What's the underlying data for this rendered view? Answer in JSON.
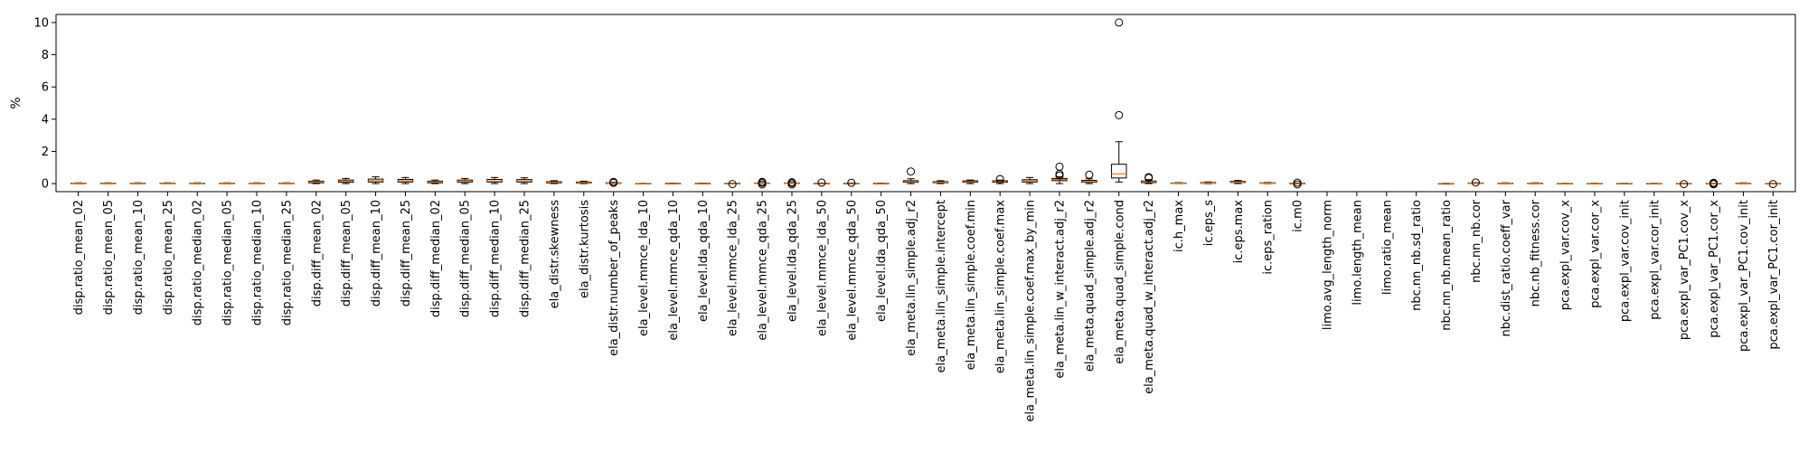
{
  "chart_data": {
    "type": "box",
    "title": "",
    "xlabel": "",
    "ylabel": "%",
    "ylim": [
      -0.5,
      10.5
    ],
    "yticks": [
      0,
      2,
      4,
      6,
      8,
      10
    ],
    "grid": false,
    "legend": "none",
    "colors": {
      "box": "#000000",
      "median": "#ff7f0e",
      "flier": "#000000"
    },
    "categories": [
      "disp.ratio_mean_02",
      "disp.ratio_mean_05",
      "disp.ratio_mean_10",
      "disp.ratio_mean_25",
      "disp.ratio_median_02",
      "disp.ratio_median_05",
      "disp.ratio_median_10",
      "disp.ratio_median_25",
      "disp.diff_mean_02",
      "disp.diff_mean_05",
      "disp.diff_mean_10",
      "disp.diff_mean_25",
      "disp.diff_median_02",
      "disp.diff_median_05",
      "disp.diff_median_10",
      "disp.diff_median_25",
      "ela_distr.skewness",
      "ela_distr.kurtosis",
      "ela_distr.number_of_peaks",
      "ela_level.mmce_lda_10",
      "ela_level.mmce_qda_10",
      "ela_level.lda_qda_10",
      "ela_level.mmce_lda_25",
      "ela_level.mmce_qda_25",
      "ela_level.lda_qda_25",
      "ela_level.mmce_lda_50",
      "ela_level.mmce_qda_50",
      "ela_level.lda_qda_50",
      "ela_meta.lin_simple.adj_r2",
      "ela_meta.lin_simple.intercept",
      "ela_meta.lin_simple.coef.min",
      "ela_meta.lin_simple.coef.max",
      "ela_meta.lin_simple.coef.max_by_min",
      "ela_meta.lin_w_interact.adj_r2",
      "ela_meta.quad_simple.adj_r2",
      "ela_meta.quad_simple.cond",
      "ela_meta.quad_w_interact.adj_r2",
      "ic.h_max",
      "ic.eps_s",
      "ic.eps.max",
      "ic.eps_ration",
      "ic.m0",
      "limo.avg_length_norm",
      "limo.length_mean",
      "limo.ratio_mean",
      "nbc.nn_nb.sd_ratio",
      "nbc.nn_nb.mean_ratio",
      "nbc.nn_nb.cor",
      "nbc.dist_ratio.coeff_var",
      "nbc.nb_fitness.cor",
      "pca.expl_var.cov_x",
      "pca.expl_var.cor_x",
      "pca.expl_var.cov_init",
      "pca.expl_var.cor_init",
      "pca.expl_var_PC1.cov_x",
      "pca.expl_var_PC1.cor_x",
      "pca.expl_var_PC1.cov_init",
      "pca.expl_var_PC1.cor_init"
    ],
    "boxes": [
      {
        "whislo": 0.0,
        "q1": 0.01,
        "med": 0.02,
        "q3": 0.03,
        "whishi": 0.05,
        "fliers": []
      },
      {
        "whislo": 0.0,
        "q1": 0.01,
        "med": 0.02,
        "q3": 0.03,
        "whishi": 0.05,
        "fliers": []
      },
      {
        "whislo": 0.0,
        "q1": 0.01,
        "med": 0.02,
        "q3": 0.03,
        "whishi": 0.05,
        "fliers": []
      },
      {
        "whislo": 0.0,
        "q1": 0.01,
        "med": 0.02,
        "q3": 0.03,
        "whishi": 0.05,
        "fliers": []
      },
      {
        "whislo": 0.0,
        "q1": 0.01,
        "med": 0.02,
        "q3": 0.03,
        "whishi": 0.05,
        "fliers": []
      },
      {
        "whislo": 0.0,
        "q1": 0.01,
        "med": 0.02,
        "q3": 0.03,
        "whishi": 0.05,
        "fliers": []
      },
      {
        "whislo": 0.0,
        "q1": 0.01,
        "med": 0.02,
        "q3": 0.03,
        "whishi": 0.05,
        "fliers": []
      },
      {
        "whislo": 0.0,
        "q1": 0.01,
        "med": 0.02,
        "q3": 0.03,
        "whishi": 0.05,
        "fliers": []
      },
      {
        "whislo": 0.0,
        "q1": 0.05,
        "med": 0.1,
        "q3": 0.15,
        "whishi": 0.22,
        "fliers": []
      },
      {
        "whislo": 0.0,
        "q1": 0.08,
        "med": 0.15,
        "q3": 0.22,
        "whishi": 0.32,
        "fliers": []
      },
      {
        "whislo": 0.0,
        "q1": 0.1,
        "med": 0.18,
        "q3": 0.28,
        "whishi": 0.42,
        "fliers": []
      },
      {
        "whislo": 0.0,
        "q1": 0.1,
        "med": 0.18,
        "q3": 0.26,
        "whishi": 0.38,
        "fliers": []
      },
      {
        "whislo": 0.0,
        "q1": 0.05,
        "med": 0.1,
        "q3": 0.15,
        "whishi": 0.22,
        "fliers": []
      },
      {
        "whislo": 0.0,
        "q1": 0.08,
        "med": 0.14,
        "q3": 0.22,
        "whishi": 0.32,
        "fliers": []
      },
      {
        "whislo": 0.0,
        "q1": 0.1,
        "med": 0.16,
        "q3": 0.26,
        "whishi": 0.38,
        "fliers": []
      },
      {
        "whislo": 0.0,
        "q1": 0.1,
        "med": 0.16,
        "q3": 0.25,
        "whishi": 0.36,
        "fliers": []
      },
      {
        "whislo": 0.0,
        "q1": 0.04,
        "med": 0.08,
        "q3": 0.12,
        "whishi": 0.18,
        "fliers": []
      },
      {
        "whislo": 0.0,
        "q1": 0.03,
        "med": 0.06,
        "q3": 0.1,
        "whishi": 0.15,
        "fliers": []
      },
      {
        "whislo": 0.0,
        "q1": 0.01,
        "med": 0.03,
        "q3": 0.05,
        "whishi": 0.08,
        "fliers": [
          0.1,
          0.05
        ]
      },
      {
        "whislo": -0.02,
        "q1": -0.01,
        "med": 0.0,
        "q3": 0.01,
        "whishi": 0.02,
        "fliers": []
      },
      {
        "whislo": 0.0,
        "q1": 0.005,
        "med": 0.01,
        "q3": 0.02,
        "whishi": 0.03,
        "fliers": []
      },
      {
        "whislo": 0.0,
        "q1": 0.005,
        "med": 0.01,
        "q3": 0.02,
        "whishi": 0.03,
        "fliers": []
      },
      {
        "whislo": 0.0,
        "q1": 0.005,
        "med": 0.01,
        "q3": 0.02,
        "whishi": 0.03,
        "fliers": [
          -0.03
        ]
      },
      {
        "whislo": 0.0,
        "q1": 0.01,
        "med": 0.02,
        "q3": 0.04,
        "whishi": 0.06,
        "fliers": [
          0.1,
          -0.05,
          0.05
        ]
      },
      {
        "whislo": 0.0,
        "q1": 0.01,
        "med": 0.02,
        "q3": 0.04,
        "whishi": 0.06,
        "fliers": [
          0.08,
          -0.05,
          0.04
        ]
      },
      {
        "whislo": 0.0,
        "q1": 0.005,
        "med": 0.01,
        "q3": 0.02,
        "whishi": 0.04,
        "fliers": [
          0.06
        ]
      },
      {
        "whislo": 0.0,
        "q1": 0.005,
        "med": 0.01,
        "q3": 0.02,
        "whishi": 0.04,
        "fliers": [
          0.05
        ]
      },
      {
        "whislo": 0.0,
        "q1": 0.005,
        "med": 0.01,
        "q3": 0.02,
        "whishi": 0.03,
        "fliers": []
      },
      {
        "whislo": 0.0,
        "q1": 0.08,
        "med": 0.12,
        "q3": 0.18,
        "whishi": 0.3,
        "fliers": [
          0.75
        ]
      },
      {
        "whislo": 0.0,
        "q1": 0.05,
        "med": 0.08,
        "q3": 0.12,
        "whishi": 0.18,
        "fliers": []
      },
      {
        "whislo": 0.0,
        "q1": 0.08,
        "med": 0.12,
        "q3": 0.17,
        "whishi": 0.22,
        "fliers": []
      },
      {
        "whislo": 0.0,
        "q1": 0.08,
        "med": 0.12,
        "q3": 0.17,
        "whishi": 0.22,
        "fliers": [
          0.28
        ]
      },
      {
        "whislo": 0.0,
        "q1": 0.1,
        "med": 0.16,
        "q3": 0.24,
        "whishi": 0.38,
        "fliers": []
      },
      {
        "whislo": 0.0,
        "q1": 0.18,
        "med": 0.25,
        "q3": 0.32,
        "whishi": 0.42,
        "fliers": [
          1.05,
          0.6,
          0.5
        ]
      },
      {
        "whislo": 0.0,
        "q1": 0.08,
        "med": 0.13,
        "q3": 0.2,
        "whishi": 0.3,
        "fliers": [
          0.55
        ]
      },
      {
        "whislo": 0.1,
        "q1": 0.35,
        "med": 0.6,
        "q3": 1.2,
        "whishi": 2.6,
        "fliers": [
          10.0,
          4.25
        ]
      },
      {
        "whislo": 0.0,
        "q1": 0.06,
        "med": 0.1,
        "q3": 0.16,
        "whishi": 0.25,
        "fliers": [
          0.35,
          0.4
        ]
      },
      {
        "whislo": 0.0,
        "q1": 0.01,
        "med": 0.02,
        "q3": 0.04,
        "whishi": 0.06,
        "fliers": []
      },
      {
        "whislo": 0.0,
        "q1": 0.02,
        "med": 0.04,
        "q3": 0.07,
        "whishi": 0.1,
        "fliers": []
      },
      {
        "whislo": 0.0,
        "q1": 0.07,
        "med": 0.1,
        "q3": 0.14,
        "whishi": 0.2,
        "fliers": []
      },
      {
        "whislo": 0.0,
        "q1": 0.02,
        "med": 0.03,
        "q3": 0.05,
        "whishi": 0.07,
        "fliers": []
      },
      {
        "whislo": 0.0,
        "q1": 0.005,
        "med": 0.01,
        "q3": 0.02,
        "whishi": 0.04,
        "fliers": [
          -0.05,
          0.06
        ]
      },
      {
        "whislo": null,
        "q1": null,
        "med": null,
        "q3": null,
        "whishi": null,
        "fliers": []
      },
      {
        "whislo": null,
        "q1": null,
        "med": null,
        "q3": null,
        "whishi": null,
        "fliers": []
      },
      {
        "whislo": null,
        "q1": null,
        "med": null,
        "q3": null,
        "whishi": null,
        "fliers": []
      },
      {
        "whislo": null,
        "q1": null,
        "med": null,
        "q3": null,
        "whishi": null,
        "fliers": []
      },
      {
        "whislo": -0.03,
        "q1": -0.015,
        "med": -0.005,
        "q3": 0.005,
        "whishi": 0.02,
        "fliers": []
      },
      {
        "whislo": 0.0,
        "q1": 0.01,
        "med": 0.02,
        "q3": 0.04,
        "whishi": 0.06,
        "fliers": [
          0.07
        ]
      },
      {
        "whislo": 0.0,
        "q1": 0.01,
        "med": 0.02,
        "q3": 0.03,
        "whishi": 0.05,
        "fliers": []
      },
      {
        "whislo": 0.0,
        "q1": 0.01,
        "med": 0.02,
        "q3": 0.03,
        "whishi": 0.05,
        "fliers": []
      },
      {
        "whislo": -0.02,
        "q1": -0.01,
        "med": 0.0,
        "q3": 0.01,
        "whishi": 0.02,
        "fliers": []
      },
      {
        "whislo": -0.02,
        "q1": -0.01,
        "med": 0.0,
        "q3": 0.01,
        "whishi": 0.02,
        "fliers": []
      },
      {
        "whislo": -0.02,
        "q1": -0.01,
        "med": 0.0,
        "q3": 0.01,
        "whishi": 0.02,
        "fliers": []
      },
      {
        "whislo": -0.02,
        "q1": -0.01,
        "med": 0.0,
        "q3": 0.01,
        "whishi": 0.02,
        "fliers": []
      },
      {
        "whislo": -0.02,
        "q1": -0.01,
        "med": 0.0,
        "q3": 0.01,
        "whishi": 0.02,
        "fliers": [
          -0.03
        ]
      },
      {
        "whislo": -0.02,
        "q1": -0.01,
        "med": 0.0,
        "q3": 0.01,
        "whishi": 0.02,
        "fliers": [
          0.05,
          -0.04,
          0.02
        ]
      },
      {
        "whislo": 0.0,
        "q1": 0.01,
        "med": 0.02,
        "q3": 0.03,
        "whishi": 0.05,
        "fliers": []
      },
      {
        "whislo": -0.02,
        "q1": -0.01,
        "med": 0.0,
        "q3": 0.01,
        "whishi": 0.02,
        "fliers": [
          -0.03
        ]
      }
    ]
  }
}
